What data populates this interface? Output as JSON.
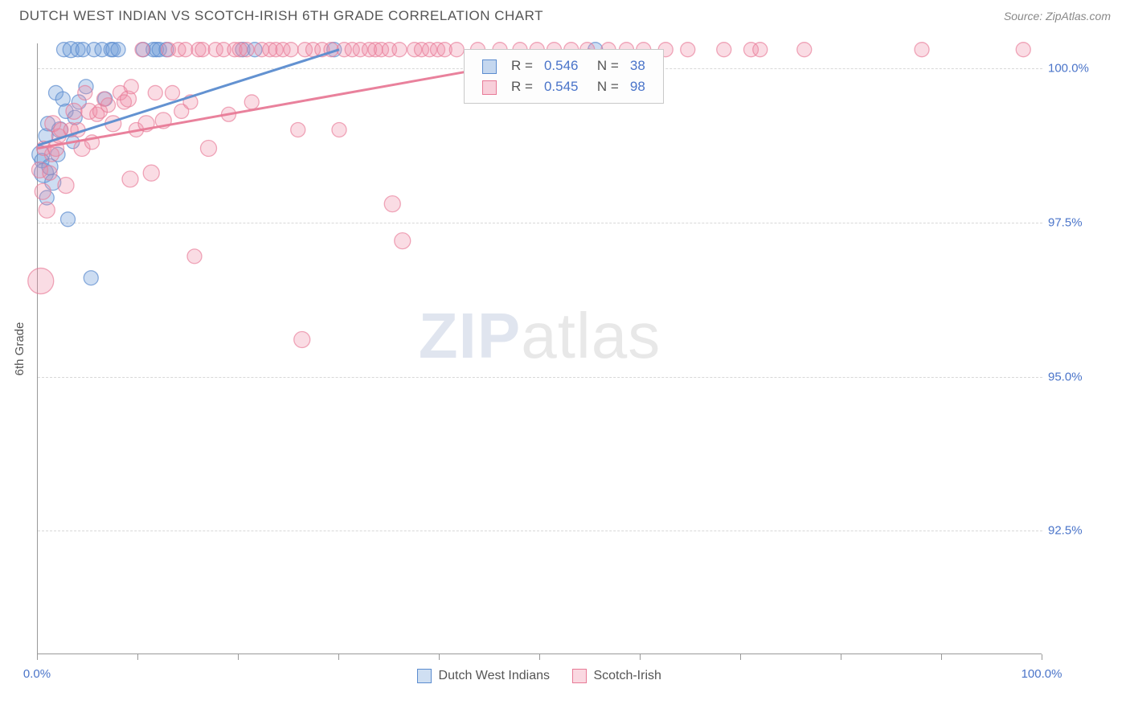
{
  "header": {
    "title": "DUTCH WEST INDIAN VS SCOTCH-IRISH 6TH GRADE CORRELATION CHART",
    "source": "Source: ZipAtlas.com"
  },
  "chart": {
    "type": "scatter",
    "ylabel": "6th Grade",
    "xlim": [
      0,
      100
    ],
    "ylim": [
      90.5,
      100.4
    ],
    "xtick_positions": [
      0,
      10,
      20,
      30,
      40,
      50,
      60,
      70,
      80,
      90,
      100
    ],
    "xtick_labels": {
      "0": "0.0%",
      "100": "100.0%"
    },
    "ytick_positions": [
      92.5,
      95.0,
      97.5,
      100.0
    ],
    "ytick_labels": [
      "92.5%",
      "95.0%",
      "97.5%",
      "100.0%"
    ],
    "background_color": "#ffffff",
    "grid_color": "#d8d8d8",
    "series": [
      {
        "name": "Dutch West Indians",
        "fill": "#6f9ed9",
        "fill_opacity": 0.35,
        "stroke": "#5b8ccf",
        "stroke_opacity": 0.7,
        "marker_radius": 10,
        "R": "0.546",
        "N": "38",
        "regression": {
          "x1": 0,
          "y1": 98.75,
          "x2": 30,
          "y2": 100.3
        },
        "points": [
          {
            "x": 0.3,
            "y": 98.6,
            "r": 11
          },
          {
            "x": 0.4,
            "y": 98.5,
            "r": 9
          },
          {
            "x": 0.6,
            "y": 98.3,
            "r": 12
          },
          {
            "x": 0.8,
            "y": 98.9,
            "r": 9
          },
          {
            "x": 0.9,
            "y": 97.9,
            "r": 9
          },
          {
            "x": 1.0,
            "y": 99.1,
            "r": 9
          },
          {
            "x": 1.2,
            "y": 98.4,
            "r": 10
          },
          {
            "x": 1.5,
            "y": 98.15,
            "r": 10
          },
          {
            "x": 1.8,
            "y": 99.6,
            "r": 9
          },
          {
            "x": 2.0,
            "y": 98.6,
            "r": 9
          },
          {
            "x": 2.2,
            "y": 99.0,
            "r": 10
          },
          {
            "x": 2.5,
            "y": 99.5,
            "r": 9
          },
          {
            "x": 2.6,
            "y": 100.3,
            "r": 9
          },
          {
            "x": 2.8,
            "y": 99.3,
            "r": 9
          },
          {
            "x": 3.0,
            "y": 97.55,
            "r": 9
          },
          {
            "x": 3.3,
            "y": 100.3,
            "r": 10
          },
          {
            "x": 3.5,
            "y": 98.8,
            "r": 8
          },
          {
            "x": 3.7,
            "y": 99.2,
            "r": 9
          },
          {
            "x": 4.0,
            "y": 100.3,
            "r": 9
          },
          {
            "x": 4.1,
            "y": 99.45,
            "r": 9
          },
          {
            "x": 4.5,
            "y": 100.3,
            "r": 9
          },
          {
            "x": 4.8,
            "y": 99.7,
            "r": 9
          },
          {
            "x": 5.3,
            "y": 96.6,
            "r": 9
          },
          {
            "x": 5.6,
            "y": 100.3,
            "r": 9
          },
          {
            "x": 6.4,
            "y": 100.3,
            "r": 9
          },
          {
            "x": 6.7,
            "y": 99.5,
            "r": 9
          },
          {
            "x": 7.3,
            "y": 100.3,
            "r": 9
          },
          {
            "x": 7.5,
            "y": 100.3,
            "r": 9
          },
          {
            "x": 8.0,
            "y": 100.3,
            "r": 9
          },
          {
            "x": 10.5,
            "y": 100.3,
            "r": 9
          },
          {
            "x": 11.5,
            "y": 100.3,
            "r": 9
          },
          {
            "x": 11.8,
            "y": 100.3,
            "r": 9
          },
          {
            "x": 12.1,
            "y": 100.3,
            "r": 9
          },
          {
            "x": 12.8,
            "y": 100.3,
            "r": 9
          },
          {
            "x": 20.4,
            "y": 100.3,
            "r": 9
          },
          {
            "x": 21.6,
            "y": 100.3,
            "r": 9
          },
          {
            "x": 29.5,
            "y": 100.3,
            "r": 9
          },
          {
            "x": 55.5,
            "y": 100.3,
            "r": 9
          }
        ]
      },
      {
        "name": "Scotch-Irish",
        "fill": "#ef8aa4",
        "fill_opacity": 0.3,
        "stroke": "#e87a97",
        "stroke_opacity": 0.65,
        "marker_radius": 10,
        "R": "0.545",
        "N": "98",
        "regression": {
          "x1": 0,
          "y1": 98.7,
          "x2": 55,
          "y2": 100.3
        },
        "points": [
          {
            "x": 0.2,
            "y": 98.35,
            "r": 10
          },
          {
            "x": 0.3,
            "y": 96.55,
            "r": 16
          },
          {
            "x": 0.5,
            "y": 98.0,
            "r": 10
          },
          {
            "x": 0.6,
            "y": 98.7,
            "r": 9
          },
          {
            "x": 0.9,
            "y": 97.7,
            "r": 10
          },
          {
            "x": 1.2,
            "y": 98.3,
            "r": 9
          },
          {
            "x": 1.4,
            "y": 98.6,
            "r": 9
          },
          {
            "x": 1.5,
            "y": 99.1,
            "r": 10
          },
          {
            "x": 1.8,
            "y": 98.7,
            "r": 10
          },
          {
            "x": 2.1,
            "y": 98.9,
            "r": 9
          },
          {
            "x": 2.3,
            "y": 99.0,
            "r": 9
          },
          {
            "x": 2.8,
            "y": 98.1,
            "r": 10
          },
          {
            "x": 3.3,
            "y": 99.0,
            "r": 9
          },
          {
            "x": 3.6,
            "y": 99.3,
            "r": 10
          },
          {
            "x": 4.0,
            "y": 99.0,
            "r": 9
          },
          {
            "x": 4.4,
            "y": 98.7,
            "r": 10
          },
          {
            "x": 4.7,
            "y": 99.6,
            "r": 9
          },
          {
            "x": 5.1,
            "y": 99.3,
            "r": 10
          },
          {
            "x": 5.4,
            "y": 98.8,
            "r": 9
          },
          {
            "x": 5.9,
            "y": 99.25,
            "r": 9
          },
          {
            "x": 6.2,
            "y": 99.3,
            "r": 9
          },
          {
            "x": 6.6,
            "y": 99.5,
            "r": 9
          },
          {
            "x": 7.0,
            "y": 99.4,
            "r": 9
          },
          {
            "x": 7.5,
            "y": 99.1,
            "r": 10
          },
          {
            "x": 8.2,
            "y": 99.6,
            "r": 9
          },
          {
            "x": 8.6,
            "y": 99.45,
            "r": 9
          },
          {
            "x": 9.0,
            "y": 99.5,
            "r": 10
          },
          {
            "x": 9.3,
            "y": 99.7,
            "r": 9
          },
          {
            "x": 9.8,
            "y": 99.0,
            "r": 9
          },
          {
            "x": 9.2,
            "y": 98.2,
            "r": 10
          },
          {
            "x": 10.4,
            "y": 100.3,
            "r": 9
          },
          {
            "x": 10.8,
            "y": 99.1,
            "r": 10
          },
          {
            "x": 11.3,
            "y": 98.3,
            "r": 10
          },
          {
            "x": 11.7,
            "y": 99.6,
            "r": 9
          },
          {
            "x": 12.5,
            "y": 99.15,
            "r": 10
          },
          {
            "x": 13.0,
            "y": 100.3,
            "r": 9
          },
          {
            "x": 13.4,
            "y": 99.6,
            "r": 9
          },
          {
            "x": 14.0,
            "y": 100.3,
            "r": 9
          },
          {
            "x": 14.3,
            "y": 99.3,
            "r": 9
          },
          {
            "x": 14.7,
            "y": 100.3,
            "r": 9
          },
          {
            "x": 15.2,
            "y": 99.45,
            "r": 9
          },
          {
            "x": 15.6,
            "y": 96.95,
            "r": 9
          },
          {
            "x": 16.0,
            "y": 100.3,
            "r": 9
          },
          {
            "x": 16.4,
            "y": 100.3,
            "r": 9
          },
          {
            "x": 17.0,
            "y": 98.7,
            "r": 10
          },
          {
            "x": 17.7,
            "y": 100.3,
            "r": 9
          },
          {
            "x": 18.5,
            "y": 100.3,
            "r": 9
          },
          {
            "x": 19.0,
            "y": 99.25,
            "r": 9
          },
          {
            "x": 19.6,
            "y": 100.3,
            "r": 9
          },
          {
            "x": 20.1,
            "y": 100.3,
            "r": 9
          },
          {
            "x": 20.8,
            "y": 100.3,
            "r": 9
          },
          {
            "x": 21.3,
            "y": 99.45,
            "r": 9
          },
          {
            "x": 22.3,
            "y": 100.3,
            "r": 9
          },
          {
            "x": 23.1,
            "y": 100.3,
            "r": 9
          },
          {
            "x": 23.7,
            "y": 100.3,
            "r": 9
          },
          {
            "x": 24.4,
            "y": 100.3,
            "r": 9
          },
          {
            "x": 25.2,
            "y": 100.3,
            "r": 9
          },
          {
            "x": 25.9,
            "y": 99.0,
            "r": 9
          },
          {
            "x": 26.6,
            "y": 100.3,
            "r": 9
          },
          {
            "x": 27.4,
            "y": 100.3,
            "r": 9
          },
          {
            "x": 26.3,
            "y": 95.6,
            "r": 10
          },
          {
            "x": 28.3,
            "y": 100.3,
            "r": 9
          },
          {
            "x": 29.2,
            "y": 100.3,
            "r": 9
          },
          {
            "x": 30.0,
            "y": 99.0,
            "r": 9
          },
          {
            "x": 30.5,
            "y": 100.3,
            "r": 9
          },
          {
            "x": 31.3,
            "y": 100.3,
            "r": 9
          },
          {
            "x": 32.1,
            "y": 100.3,
            "r": 9
          },
          {
            "x": 33.0,
            "y": 100.3,
            "r": 9
          },
          {
            "x": 33.6,
            "y": 100.3,
            "r": 9
          },
          {
            "x": 34.2,
            "y": 100.3,
            "r": 9
          },
          {
            "x": 35.0,
            "y": 100.3,
            "r": 9
          },
          {
            "x": 35.3,
            "y": 97.8,
            "r": 10
          },
          {
            "x": 36.0,
            "y": 100.3,
            "r": 9
          },
          {
            "x": 36.3,
            "y": 97.2,
            "r": 10
          },
          {
            "x": 37.5,
            "y": 100.3,
            "r": 9
          },
          {
            "x": 38.2,
            "y": 100.3,
            "r": 9
          },
          {
            "x": 39.0,
            "y": 100.3,
            "r": 9
          },
          {
            "x": 39.8,
            "y": 100.3,
            "r": 9
          },
          {
            "x": 40.5,
            "y": 100.3,
            "r": 9
          },
          {
            "x": 41.7,
            "y": 100.3,
            "r": 9
          },
          {
            "x": 43.8,
            "y": 100.3,
            "r": 9
          },
          {
            "x": 46.0,
            "y": 100.3,
            "r": 9
          },
          {
            "x": 48.0,
            "y": 100.3,
            "r": 9
          },
          {
            "x": 49.7,
            "y": 100.3,
            "r": 9
          },
          {
            "x": 51.4,
            "y": 100.3,
            "r": 9
          },
          {
            "x": 53.1,
            "y": 100.3,
            "r": 9
          },
          {
            "x": 54.7,
            "y": 100.3,
            "r": 9
          },
          {
            "x": 56.8,
            "y": 100.3,
            "r": 9
          },
          {
            "x": 58.6,
            "y": 100.3,
            "r": 9
          },
          {
            "x": 60.3,
            "y": 100.3,
            "r": 9
          },
          {
            "x": 62.5,
            "y": 100.3,
            "r": 9
          },
          {
            "x": 64.7,
            "y": 100.3,
            "r": 9
          },
          {
            "x": 68.3,
            "y": 100.3,
            "r": 9
          },
          {
            "x": 71.0,
            "y": 100.3,
            "r": 9
          },
          {
            "x": 71.9,
            "y": 100.3,
            "r": 9
          },
          {
            "x": 76.3,
            "y": 100.3,
            "r": 9
          },
          {
            "x": 88.0,
            "y": 100.3,
            "r": 9
          },
          {
            "x": 98.1,
            "y": 100.3,
            "r": 9
          }
        ]
      }
    ],
    "watermark": {
      "part1": "ZIP",
      "part2": "atlas"
    },
    "bottom_legend": [
      "Dutch West Indians",
      "Scotch-Irish"
    ]
  }
}
